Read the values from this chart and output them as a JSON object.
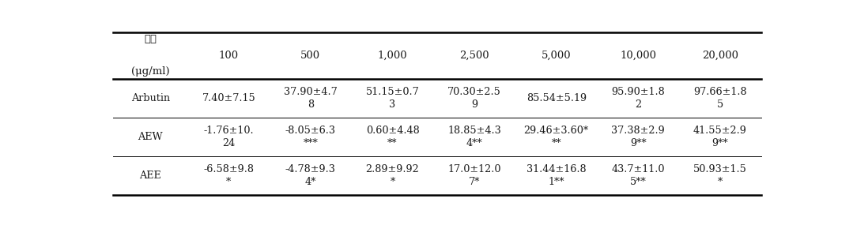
{
  "col_labels": [
    "100",
    "500",
    "1,000",
    "2,500",
    "5,000",
    "10,000",
    "20,000"
  ],
  "row_labels": [
    "Arbutin",
    "AEW",
    "AEE"
  ],
  "header_label1": "농도",
  "header_label2": "(μg/ml)",
  "cell_data": [
    [
      "7.40±7.15",
      "37.90±4.7\n8",
      "51.15±0.7\n3",
      "70.30±2.5\n9",
      "85.54±5.19",
      "95.90±1.8\n2",
      "97.66±1.8\n5"
    ],
    [
      "-1.76±10.\n24",
      "-8.05±6.3\n***",
      "0.60±4.48\n**",
      "18.85±4.3\n4**",
      "29.46±3.60*\n**",
      "37.38±2.9\n9**",
      "41.55±2.9\n9**"
    ],
    [
      "-6.58±9.8\n*",
      "-4.78±9.3\n4*",
      "2.89±9.92\n*",
      "17.0±12.0\n7*",
      "31.44±16.8\n1**",
      "43.7±11.0\n5**",
      "50.93±1.5\n*"
    ]
  ],
  "background_color": "#ffffff",
  "text_color": "#1a1a1a",
  "fontsize": 9.2,
  "header_fontsize": 9.5,
  "figsize": [
    10.79,
    2.85
  ],
  "dpi": 100
}
